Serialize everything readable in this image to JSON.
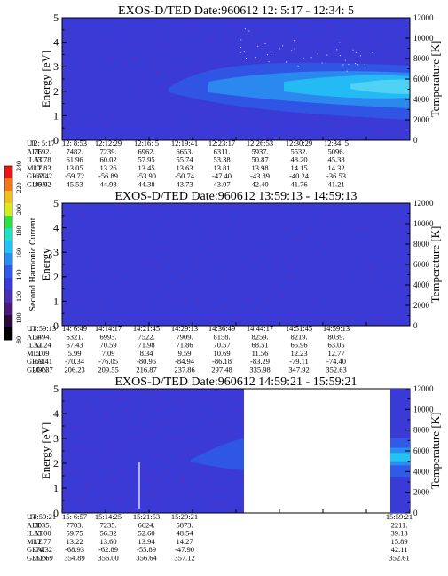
{
  "chart_data": [
    {
      "type": "heatmap",
      "title": "EXOS-D/TED   Date:960612  12: 5:17 - 12:34: 5",
      "ylabel": "Energy [eV]",
      "y2label": "Temperature [K]",
      "ylim": [
        0,
        5
      ],
      "y_ticks": [
        "0",
        "1",
        "2",
        "3",
        "4",
        "5"
      ],
      "y2lim": [
        0,
        12000
      ],
      "y2_ticks": [
        "0",
        "2000",
        "4000",
        "6000",
        "8000",
        "10000",
        "12000"
      ],
      "rows": [
        {
          "label": "UT",
          "values": [
            "12: 5:17",
            "12: 8:53",
            "12:12:29",
            "12:16: 5",
            "12:19:41",
            "12:23:17",
            "12:26:53",
            "12:30:29",
            "12:34: 5"
          ]
        },
        {
          "label": "ALT",
          "values": [
            "7692.",
            "7482.",
            "7239.",
            "6962.",
            "6653.",
            "6311.",
            "5937.",
            "5532.",
            "5096."
          ]
        },
        {
          "label": "ILAT",
          "values": [
            "63.78",
            "61.96",
            "60.02",
            "57.95",
            "55.74",
            "53.38",
            "50.87",
            "48.20",
            "45.38"
          ]
        },
        {
          "label": "MLT",
          "values": [
            "12.83",
            "13.05",
            "13.26",
            "13.45",
            "13.63",
            "13.81",
            "13.98",
            "14.15",
            "14.32"
          ]
        },
        {
          "label": "GLAT",
          "values": [
            "-62.42",
            "-59.72",
            "-56.89",
            "-53.90",
            "-50.74",
            "-47.40",
            "-43.89",
            "-40.24",
            "-36.53"
          ]
        },
        {
          "label": "GLON",
          "values": [
            "46.02",
            "45.53",
            "44.98",
            "44.38",
            "43.73",
            "43.07",
            "42.40",
            "41.76",
            "41.21"
          ]
        }
      ]
    },
    {
      "type": "heatmap",
      "title": "EXOS-D/TED   Date:960612  13:59:13 - 14:59:13",
      "ylabel": "Energy",
      "y2label": "Temperature [K]",
      "ylim": [
        0,
        5
      ],
      "y_ticks": [
        "0",
        "1",
        "2",
        "3",
        "4",
        "5"
      ],
      "y2lim": [
        0,
        12000
      ],
      "y2_ticks": [
        "0",
        "2000",
        "4000",
        "6000",
        "8000",
        "10000",
        "12000"
      ],
      "rows": [
        {
          "label": "UT",
          "values": [
            "13:59:13",
            "14: 6:49",
            "14:14:17",
            "14:21:45",
            "14:29:13",
            "14:36:49",
            "14:44:17",
            "14:51:45",
            "14:59:13"
          ]
        },
        {
          "label": "ALT",
          "values": [
            "5494.",
            "6321.",
            "6993.",
            "7522.",
            "7909.",
            "8158.",
            "8259.",
            "8219.",
            "8039."
          ]
        },
        {
          "label": "ILAT",
          "values": [
            "62.24",
            "67.43",
            "70.59",
            "71.98",
            "71.86",
            "70.57",
            "68.51",
            "65.96",
            "63.05"
          ]
        },
        {
          "label": "MLT",
          "values": [
            "5.09",
            "5.99",
            "7.09",
            "8.34",
            "9.59",
            "10.69",
            "11.56",
            "12.23",
            "12.77"
          ]
        },
        {
          "label": "GLAT",
          "values": [
            "-63.41",
            "-70.34",
            "-76.05",
            "-80.95",
            "-84.94",
            "-86.18",
            "-83.29",
            "-79.11",
            "-74.40"
          ]
        },
        {
          "label": "GLON",
          "values": [
            "204.37",
            "206.23",
            "209.55",
            "216.87",
            "237.86",
            "297.48",
            "335.98",
            "347.92",
            "352.63"
          ]
        }
      ]
    },
    {
      "type": "heatmap",
      "title": "EXOS-D/TED   Date:960612  14:59:21 - 15:59:21",
      "ylabel": "Energy [eV]",
      "y2label": "Temperature [K]",
      "ylim": [
        0,
        5
      ],
      "y_ticks": [
        "0",
        "1",
        "2",
        "3",
        "4",
        "5"
      ],
      "y2lim": [
        0,
        12000
      ],
      "y2_ticks": [
        "0",
        "2000",
        "4000",
        "6000",
        "8000",
        "10000",
        "12000"
      ],
      "rows": [
        {
          "label": "UT",
          "values": [
            "14:59:21",
            "15: 6:57",
            "15:14:25",
            "15:21:53",
            "15:29:21",
            "",
            "",
            "",
            "15:59:21"
          ]
        },
        {
          "label": "ALT",
          "values": [
            "8035.",
            "7703.",
            "7235.",
            "6624.",
            "5873.",
            "",
            "",
            "",
            "2211."
          ]
        },
        {
          "label": "ILAT",
          "values": [
            "63.00",
            "59.75",
            "56.32",
            "52.60",
            "48.54",
            "",
            "",
            "",
            "39.13"
          ]
        },
        {
          "label": "MLT",
          "values": [
            "12.77",
            "13.22",
            "13.60",
            "13.94",
            "14.27",
            "",
            "",
            "",
            "15.89"
          ]
        },
        {
          "label": "GLAT",
          "values": [
            "-74.32",
            "-68.93",
            "-62.89",
            "-55.89",
            "-47.90",
            "",
            "",
            "",
            "42.11"
          ]
        },
        {
          "label": "GLON",
          "values": [
            "352.69",
            "354.89",
            "356.00",
            "356.64",
            "357.12",
            "",
            "",
            "",
            "352.61"
          ]
        }
      ]
    }
  ],
  "colorbar": {
    "label": "Second Harmonic Current",
    "ticks": [
      "80",
      "100",
      "120",
      "140",
      "160",
      "180",
      "200",
      "220",
      "240"
    ],
    "colors": [
      "#000000",
      "#2a0b3d",
      "#4a1a7a",
      "#4b2fb3",
      "#3b3bd9",
      "#2f5be8",
      "#2a8ef0",
      "#23c4f5",
      "#20e0c8",
      "#30e040",
      "#d8ea20",
      "#f0c020",
      "#f07818",
      "#e81818"
    ]
  }
}
